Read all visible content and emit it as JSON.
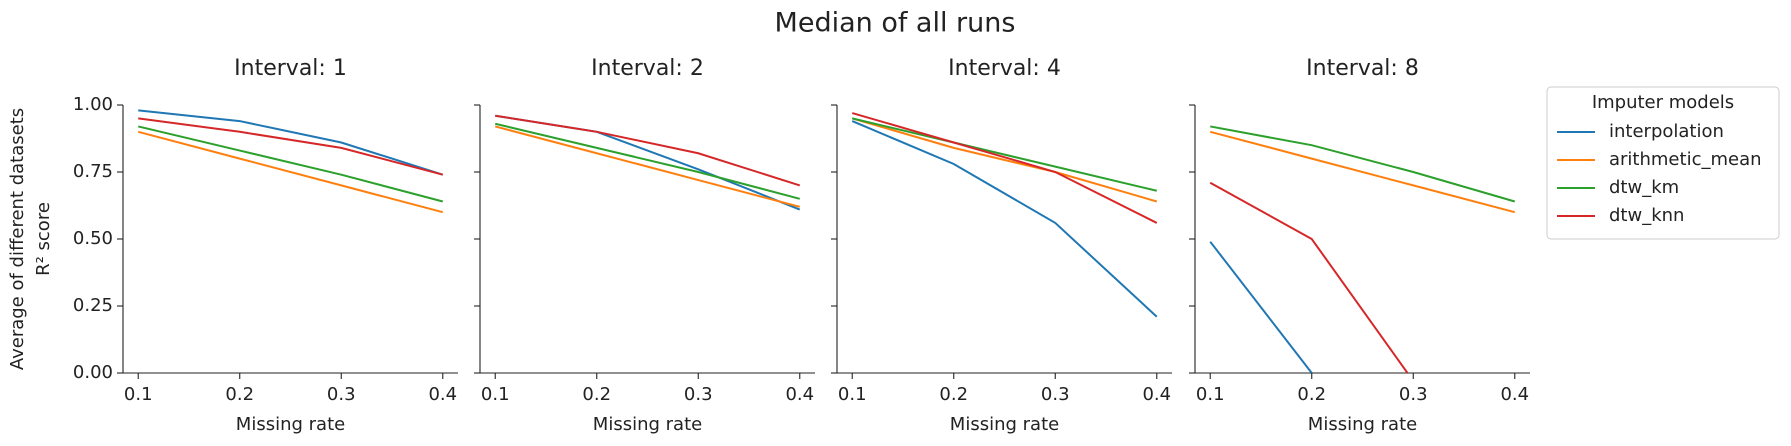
{
  "title": "Median of all runs",
  "legend_title": "Imputer models",
  "legend_position": "upper right outside",
  "chart_data": [
    {
      "type": "line",
      "title": "Interval: 1",
      "xlabel": "Missing rate",
      "ylabel": [
        "Average of different datasets",
        "R² score"
      ],
      "x": [
        0.1,
        0.2,
        0.3,
        0.4
      ],
      "xlim": [
        0.085,
        0.415
      ],
      "xticks": [
        0.1,
        0.2,
        0.3,
        0.4
      ],
      "ylim": [
        0,
        1
      ],
      "yticks": [
        {
          "value": 0,
          "label": "0.00"
        },
        {
          "value": 0.25,
          "label": "0.25"
        },
        {
          "value": 0.5,
          "label": "0.50"
        },
        {
          "value": 0.75,
          "label": "0.75"
        },
        {
          "value": 1,
          "label": "1.00"
        }
      ],
      "series": [
        {
          "name": "interpolation",
          "color": "#1f77b4",
          "values": [
            0.98,
            0.94,
            0.86,
            0.74
          ]
        },
        {
          "name": "arithmetic_mean",
          "color": "#ff7f0e",
          "values": [
            0.9,
            0.8,
            0.7,
            0.6
          ]
        },
        {
          "name": "dtw_km",
          "color": "#2ca02c",
          "values": [
            0.92,
            0.83,
            0.74,
            0.64
          ]
        },
        {
          "name": "dtw_knn",
          "color": "#d62728",
          "values": [
            0.95,
            0.9,
            0.84,
            0.74
          ]
        }
      ]
    },
    {
      "type": "line",
      "title": "Interval: 2",
      "xlabel": "Missing rate",
      "x": [
        0.1,
        0.2,
        0.3,
        0.4
      ],
      "xlim": [
        0.085,
        0.415
      ],
      "xticks": [
        0.1,
        0.2,
        0.3,
        0.4
      ],
      "ylim": [
        0,
        1
      ],
      "yticks": [
        0,
        0.25,
        0.5,
        0.75,
        1
      ],
      "series": [
        {
          "name": "interpolation",
          "color": "#1f77b4",
          "values": [
            0.96,
            0.9,
            0.76,
            0.61
          ]
        },
        {
          "name": "arithmetic_mean",
          "color": "#ff7f0e",
          "values": [
            0.92,
            0.82,
            0.72,
            0.62
          ]
        },
        {
          "name": "dtw_km",
          "color": "#2ca02c",
          "values": [
            0.93,
            0.84,
            0.75,
            0.65
          ]
        },
        {
          "name": "dtw_knn",
          "color": "#d62728",
          "values": [
            0.96,
            0.9,
            0.82,
            0.7
          ]
        }
      ]
    },
    {
      "type": "line",
      "title": "Interval: 4",
      "xlabel": "Missing rate",
      "x": [
        0.1,
        0.2,
        0.3,
        0.4
      ],
      "xlim": [
        0.085,
        0.415
      ],
      "xticks": [
        0.1,
        0.2,
        0.3,
        0.4
      ],
      "ylim": [
        0,
        1
      ],
      "yticks": [
        0,
        0.25,
        0.5,
        0.75,
        1
      ],
      "series": [
        {
          "name": "interpolation",
          "color": "#1f77b4",
          "values": [
            0.94,
            0.78,
            0.56,
            0.21
          ]
        },
        {
          "name": "arithmetic_mean",
          "color": "#ff7f0e",
          "values": [
            0.95,
            0.84,
            0.75,
            0.64
          ]
        },
        {
          "name": "dtw_km",
          "color": "#2ca02c",
          "values": [
            0.95,
            0.86,
            0.77,
            0.68
          ]
        },
        {
          "name": "dtw_knn",
          "color": "#d62728",
          "values": [
            0.97,
            0.86,
            0.75,
            0.56
          ]
        }
      ]
    },
    {
      "type": "line",
      "title": "Interval: 8",
      "xlabel": "Missing rate",
      "x": [
        0.1,
        0.2,
        0.3,
        0.4
      ],
      "xlim": [
        0.085,
        0.415
      ],
      "xticks": [
        0.1,
        0.2,
        0.3,
        0.4
      ],
      "ylim": [
        0,
        1
      ],
      "yticks": [
        0,
        0.25,
        0.5,
        0.75,
        1
      ],
      "series": [
        {
          "name": "interpolation",
          "color": "#1f77b4",
          "values": [
            0.49,
            0,
            null,
            null
          ]
        },
        {
          "name": "arithmetic_mean",
          "color": "#ff7f0e",
          "values": [
            0.9,
            0.8,
            0.7,
            0.6
          ]
        },
        {
          "name": "dtw_km",
          "color": "#2ca02c",
          "values": [
            0.92,
            0.85,
            0.75,
            0.64
          ]
        },
        {
          "name": "dtw_knn",
          "color": "#d62728",
          "values": [
            0.71,
            0.5,
            -0.03,
            null
          ]
        }
      ]
    }
  ]
}
